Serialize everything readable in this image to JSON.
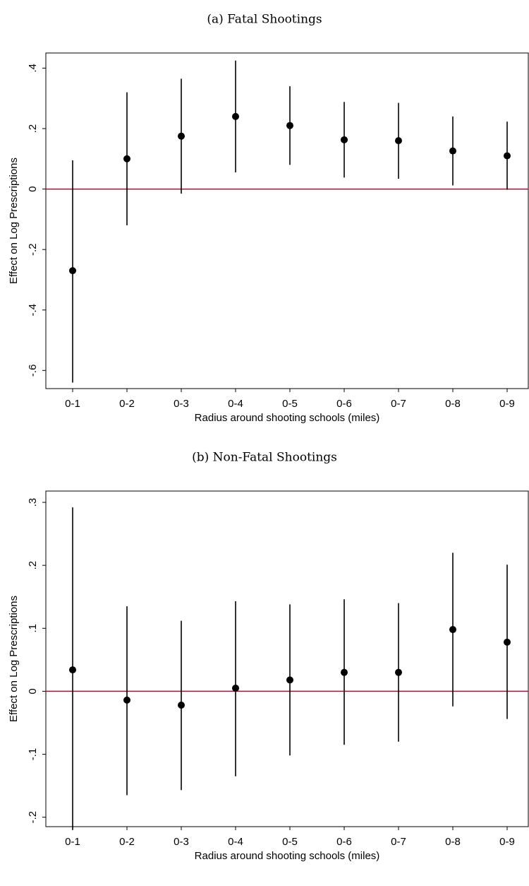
{
  "chart_data": [
    {
      "type": "errorbar",
      "title": "(a) Fatal Shootings",
      "x_label": "Radius around shooting schools (miles)",
      "y_label": "Effect on Log Prescriptions",
      "categories": [
        "0-1",
        "0-2",
        "0-3",
        "0-4",
        "0-5",
        "0-6",
        "0-7",
        "0-8",
        "0-9"
      ],
      "series": [
        {
          "color": "#000000",
          "values": [
            -0.27,
            0.1,
            0.175,
            0.24,
            0.21,
            0.163,
            0.16,
            0.126,
            0.11
          ],
          "lower": [
            -0.64,
            -0.12,
            -0.015,
            0.055,
            0.08,
            0.038,
            0.034,
            0.012,
            -0.002
          ],
          "upper": [
            0.095,
            0.32,
            0.365,
            0.425,
            0.34,
            0.288,
            0.285,
            0.24,
            0.223
          ]
        }
      ],
      "ylim": [
        -0.66,
        0.45
      ],
      "yticks": [
        {
          "value": -0.6,
          "label": "-.6"
        },
        {
          "value": -0.4,
          "label": "-.4"
        },
        {
          "value": -0.2,
          "label": "-.2"
        },
        0,
        {
          "value": 0.2,
          "label": ".2"
        },
        {
          "value": 0.4,
          "label": ".4"
        }
      ],
      "refline": {
        "value": 0,
        "color": "#a6113c"
      }
    },
    {
      "type": "errorbar",
      "title": "(b) Non-Fatal Shootings",
      "x_label": "Radius around shooting schools (miles)",
      "y_label": "Effect on Log Prescriptions",
      "categories": [
        "0-1",
        "0-2",
        "0-3",
        "0-4",
        "0-5",
        "0-6",
        "0-7",
        "0-8",
        "0-9"
      ],
      "series": [
        {
          "color": "#000000",
          "values": [
            0.034,
            -0.014,
            -0.022,
            0.005,
            0.018,
            0.03,
            0.03,
            0.098,
            0.078
          ],
          "lower": [
            -0.22,
            -0.165,
            -0.157,
            -0.135,
            -0.102,
            -0.085,
            -0.08,
            -0.024,
            -0.044
          ],
          "upper": [
            0.292,
            0.135,
            0.112,
            0.143,
            0.138,
            0.146,
            0.14,
            0.22,
            0.201
          ]
        }
      ],
      "ylim": [
        -0.215,
        0.318
      ],
      "yticks": [
        {
          "value": -0.2,
          "label": "-.2"
        },
        {
          "value": -0.1,
          "label": "-.1"
        },
        0,
        {
          "value": 0.1,
          "label": ".1"
        },
        {
          "value": 0.2,
          "label": ".2"
        },
        {
          "value": 0.3,
          "label": ".3"
        }
      ],
      "refline": {
        "value": 0,
        "color": "#a6113c"
      }
    }
  ]
}
